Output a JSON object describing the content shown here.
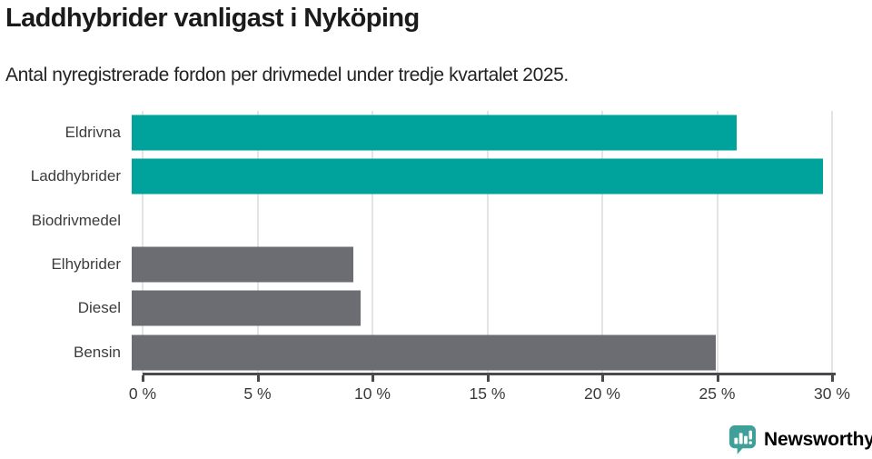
{
  "header": {
    "title": "Laddhybrider vanligast i Nyköping",
    "subtitle": "Antal nyregistrerade fordon per drivmedel under tredje kvartalet 2025."
  },
  "chart_data": {
    "type": "bar",
    "orientation": "horizontal",
    "title": "Laddhybrider vanligast i Nyköping",
    "subtitle": "Antal nyregistrerade fordon per drivmedel under tredje kvartalet 2025.",
    "categories": [
      "Eldrivna",
      "Laddhybrider",
      "Biodrivmedel",
      "Elhybrider",
      "Diesel",
      "Bensin"
    ],
    "values": [
      25.9,
      29.6,
      0,
      9.5,
      9.8,
      25.0
    ],
    "unit": "%",
    "highlighted": [
      true,
      true,
      false,
      false,
      false,
      false
    ],
    "x_ticks": [
      {
        "label": "0 %",
        "value": 0
      },
      {
        "label": "5 %",
        "value": 5
      },
      {
        "label": "10 %",
        "value": 10
      },
      {
        "label": "15 %",
        "value": 15
      },
      {
        "label": "20 %",
        "value": 20
      },
      {
        "label": "25 %",
        "value": 25
      },
      {
        "label": "30 %",
        "value": 30
      }
    ],
    "xlim": [
      0,
      30
    ],
    "grid": true,
    "legend": "none",
    "colors": {
      "highlight": "#00a39b",
      "default": "#6c6c73",
      "gridline": "#e4e4e4",
      "axis": "#4a4a4e"
    }
  },
  "branding": {
    "logo_text": "Newsworthy",
    "logo_icon": "newsworthy-speech-bubble-chart-icon",
    "logo_color": "#3f9f99"
  }
}
